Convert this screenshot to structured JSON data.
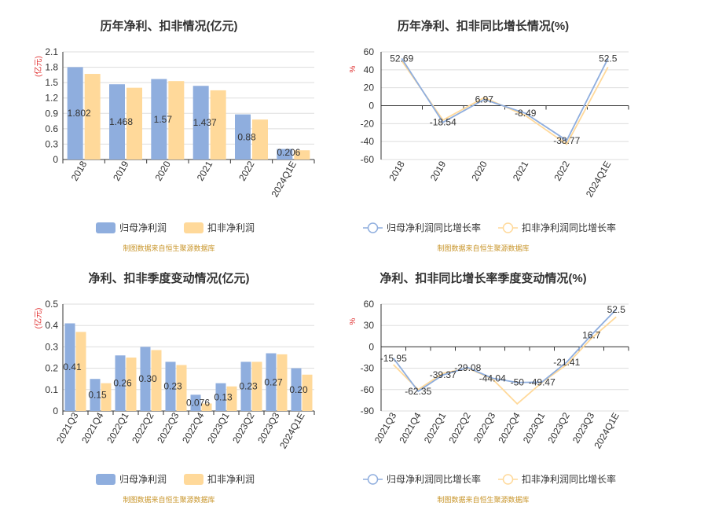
{
  "colors": {
    "parent": "#8FAEDE",
    "nonrec": "#FFD99A"
  },
  "source_text": "制图数据来自恒生聚源数据库",
  "chart_data": [
    {
      "type": "bar",
      "title": "历年净利、扣非情况(亿元)",
      "ylabel": "(亿元)",
      "ylim": [
        0,
        2.1
      ],
      "yticks": [
        "0",
        "0.3",
        "0.6",
        "0.9",
        "1.2",
        "1.5",
        "1.8",
        "2.1"
      ],
      "categories": [
        "2018",
        "2019",
        "2020",
        "2021",
        "2022",
        "2024Q1E"
      ],
      "series": [
        {
          "name": "归母净利润",
          "values": [
            1.802,
            1.468,
            1.57,
            1.437,
            0.88,
            0.206
          ],
          "labels": [
            "1.802",
            "1.468",
            "1.57",
            "1.437",
            "0.88",
            "0.206"
          ]
        },
        {
          "name": "扣非净利润",
          "values": [
            1.67,
            1.4,
            1.53,
            1.35,
            0.78,
            0.18
          ]
        }
      ]
    },
    {
      "type": "line",
      "title": "历年净利、扣非同比增长情况(%)",
      "ylabel": "%",
      "ylim": [
        -60,
        60
      ],
      "yticks": [
        "-60",
        "-40",
        "-20",
        "0",
        "20",
        "40",
        "60"
      ],
      "categories": [
        "2018",
        "2019",
        "2020",
        "2021",
        "2022",
        "2024Q1E"
      ],
      "series": [
        {
          "name": "归母净利润同比增长率",
          "values": [
            52.69,
            -18.54,
            6.97,
            -8.49,
            -38.77,
            52.5
          ],
          "labels": [
            "52.69",
            "-18.54",
            "6.97",
            "-8.49",
            "-38.77",
            "52.5"
          ]
        },
        {
          "name": "扣非净利润同比增长率",
          "values": [
            50,
            -16,
            9,
            -11,
            -43,
            43
          ]
        }
      ]
    },
    {
      "type": "bar",
      "title": "净利、扣非季度变动情况(亿元)",
      "ylabel": "(亿元)",
      "ylim": [
        0,
        0.5
      ],
      "yticks": [
        "0",
        "0.1",
        "0.2",
        "0.3",
        "0.4",
        "0.5"
      ],
      "categories": [
        "2021Q3",
        "2021Q4",
        "2022Q1",
        "2022Q2",
        "2022Q3",
        "2022Q4",
        "2023Q1",
        "2023Q2",
        "2023Q3",
        "2024Q1E"
      ],
      "series": [
        {
          "name": "归母净利润",
          "values": [
            0.41,
            0.15,
            0.26,
            0.3,
            0.23,
            0.076,
            0.13,
            0.23,
            0.27,
            0.2
          ],
          "labels": [
            "0.41",
            "0.15",
            "0.26",
            "0.30",
            "0.23",
            "0.076",
            "0.13",
            "0.23",
            "0.27",
            "0.20"
          ]
        },
        {
          "name": "扣非净利润",
          "values": [
            0.37,
            0.13,
            0.25,
            0.285,
            0.215,
            0.035,
            0.115,
            0.23,
            0.265,
            0.17
          ]
        }
      ]
    },
    {
      "type": "line",
      "title": "净利、扣非同比增长率季度变动情况(%)",
      "ylabel": "%",
      "ylim": [
        -90,
        60
      ],
      "yticks": [
        "-90",
        "-60",
        "-30",
        "0",
        "30",
        "60"
      ],
      "categories": [
        "2021Q3",
        "2021Q4",
        "2022Q1",
        "2022Q2",
        "2022Q3",
        "2022Q4",
        "2023Q1",
        "2023Q2",
        "2023Q3",
        "2024Q1E"
      ],
      "series": [
        {
          "name": "归母净利润同比增长率",
          "values": [
            -15.95,
            -62.35,
            -39.37,
            -29.08,
            -44.04,
            -50,
            -49.47,
            -21.41,
            16.7,
            52.5
          ],
          "labels": [
            "-15.95",
            "-62.35",
            "-39.37",
            "-29.08",
            "-44.04",
            "-50",
            "-49.47",
            "-21.41",
            "16.7",
            "52.5"
          ]
        },
        {
          "name": "扣非净利润同比增长率",
          "values": [
            -25,
            -60,
            -37,
            -30,
            -45,
            -80,
            -50,
            -25,
            12,
            42
          ]
        }
      ]
    }
  ]
}
